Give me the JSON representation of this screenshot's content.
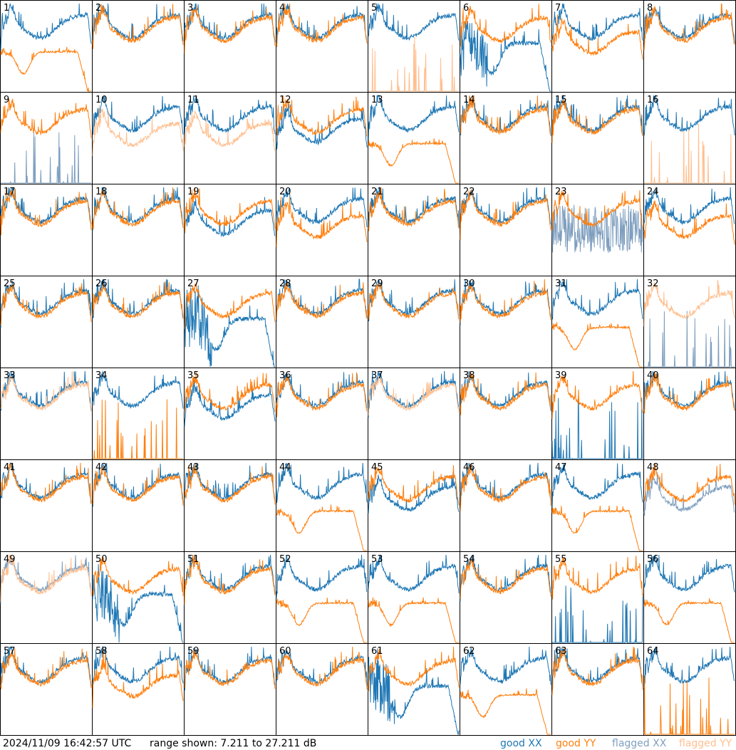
{
  "footer": {
    "timestamp": "2024/11/09 16:42:57 UTC",
    "range_text": "range shown: 7.211 to 27.211 dB"
  },
  "legend": [
    {
      "label": "good XX",
      "color": "#1f77b4"
    },
    {
      "label": "good YY",
      "color": "#ff7f0e"
    },
    {
      "label": "flagged XX",
      "color": "#7f9fbf"
    },
    {
      "label": "flagged YY",
      "color": "#ffbf8f"
    }
  ],
  "chart_data": {
    "type": "line",
    "grid_rows": 8,
    "grid_cols": 8,
    "ylim_db": [
      7.211,
      27.211
    ],
    "panels": [
      {
        "id": "1",
        "xx": "good",
        "yy": "good",
        "shape": "yy_drop"
      },
      {
        "id": "2",
        "xx": "good",
        "yy": "good",
        "shape": "normal"
      },
      {
        "id": "3",
        "xx": "good",
        "yy": "good",
        "shape": "normal"
      },
      {
        "id": "4",
        "xx": "good",
        "yy": "good",
        "shape": "normal"
      },
      {
        "id": "5",
        "xx": "good",
        "yy": "flagged",
        "shape": "yy_dead"
      },
      {
        "id": "6",
        "xx": "good",
        "yy": "good",
        "shape": "xx_weird"
      },
      {
        "id": "7",
        "xx": "good",
        "yy": "good",
        "shape": "yy_low"
      },
      {
        "id": "8",
        "xx": "good",
        "yy": "good",
        "shape": "normal"
      },
      {
        "id": "9",
        "xx": "flagged",
        "yy": "good",
        "shape": "xx_dead"
      },
      {
        "id": "10",
        "xx": "good",
        "yy": "flagged",
        "shape": "yy_low"
      },
      {
        "id": "11",
        "xx": "good",
        "yy": "flagged",
        "shape": "yy_low"
      },
      {
        "id": "12",
        "xx": "good",
        "yy": "good",
        "shape": "xx_low"
      },
      {
        "id": "13",
        "xx": "good",
        "yy": "good",
        "shape": "yy_drop"
      },
      {
        "id": "14",
        "xx": "good",
        "yy": "good",
        "shape": "normal"
      },
      {
        "id": "15",
        "xx": "good",
        "yy": "good",
        "shape": "normal"
      },
      {
        "id": "16",
        "xx": "good",
        "yy": "flagged",
        "shape": "yy_dead"
      },
      {
        "id": "17",
        "xx": "good",
        "yy": "good",
        "shape": "normal"
      },
      {
        "id": "18",
        "xx": "good",
        "yy": "good",
        "shape": "normal"
      },
      {
        "id": "19",
        "xx": "good",
        "yy": "good",
        "shape": "xx_low"
      },
      {
        "id": "20",
        "xx": "good",
        "yy": "good",
        "shape": "yy_low"
      },
      {
        "id": "21",
        "xx": "good",
        "yy": "good",
        "shape": "normal"
      },
      {
        "id": "22",
        "xx": "good",
        "yy": "good",
        "shape": "normal"
      },
      {
        "id": "23",
        "xx": "flagged",
        "yy": "good",
        "shape": "xx_noisy"
      },
      {
        "id": "24",
        "xx": "good",
        "yy": "good",
        "shape": "yy_low"
      },
      {
        "id": "25",
        "xx": "good",
        "yy": "good",
        "shape": "normal"
      },
      {
        "id": "26",
        "xx": "good",
        "yy": "good",
        "shape": "normal"
      },
      {
        "id": "27",
        "xx": "good",
        "yy": "good",
        "shape": "xx_weird"
      },
      {
        "id": "28",
        "xx": "good",
        "yy": "good",
        "shape": "normal"
      },
      {
        "id": "29",
        "xx": "good",
        "yy": "good",
        "shape": "normal"
      },
      {
        "id": "30",
        "xx": "good",
        "yy": "good",
        "shape": "normal"
      },
      {
        "id": "31",
        "xx": "good",
        "yy": "good",
        "shape": "yy_drop"
      },
      {
        "id": "32",
        "xx": "flagged",
        "yy": "flagged",
        "shape": "xx_dead"
      },
      {
        "id": "33",
        "xx": "good",
        "yy": "flagged",
        "shape": "normal"
      },
      {
        "id": "34",
        "xx": "good",
        "yy": "good",
        "shape": "yy_dead"
      },
      {
        "id": "35",
        "xx": "good",
        "yy": "good",
        "shape": "xx_low"
      },
      {
        "id": "36",
        "xx": "good",
        "yy": "good",
        "shape": "normal"
      },
      {
        "id": "37",
        "xx": "good",
        "yy": "flagged",
        "shape": "normal"
      },
      {
        "id": "38",
        "xx": "good",
        "yy": "good",
        "shape": "normal"
      },
      {
        "id": "39",
        "xx": "good",
        "yy": "good",
        "shape": "xx_dead"
      },
      {
        "id": "40",
        "xx": "good",
        "yy": "good",
        "shape": "normal"
      },
      {
        "id": "41",
        "xx": "good",
        "yy": "good",
        "shape": "normal"
      },
      {
        "id": "42",
        "xx": "good",
        "yy": "good",
        "shape": "normal"
      },
      {
        "id": "43",
        "xx": "good",
        "yy": "good",
        "shape": "normal"
      },
      {
        "id": "44",
        "xx": "good",
        "yy": "good",
        "shape": "yy_drop"
      },
      {
        "id": "45",
        "xx": "good",
        "yy": "good",
        "shape": "xx_low"
      },
      {
        "id": "46",
        "xx": "good",
        "yy": "good",
        "shape": "normal"
      },
      {
        "id": "47",
        "xx": "good",
        "yy": "good",
        "shape": "yy_drop"
      },
      {
        "id": "48",
        "xx": "flagged",
        "yy": "good",
        "shape": "xx_low"
      },
      {
        "id": "49",
        "xx": "flagged",
        "yy": "flagged",
        "shape": "normal"
      },
      {
        "id": "50",
        "xx": "good",
        "yy": "good",
        "shape": "xx_weird"
      },
      {
        "id": "51",
        "xx": "good",
        "yy": "good",
        "shape": "normal"
      },
      {
        "id": "52",
        "xx": "good",
        "yy": "good",
        "shape": "yy_drop"
      },
      {
        "id": "53",
        "xx": "good",
        "yy": "good",
        "shape": "yy_drop"
      },
      {
        "id": "54",
        "xx": "good",
        "yy": "good",
        "shape": "normal"
      },
      {
        "id": "55",
        "xx": "good",
        "yy": "good",
        "shape": "xx_dead"
      },
      {
        "id": "56",
        "xx": "good",
        "yy": "good",
        "shape": "yy_drop"
      },
      {
        "id": "57",
        "xx": "good",
        "yy": "good",
        "shape": "normal"
      },
      {
        "id": "58",
        "xx": "good",
        "yy": "good",
        "shape": "yy_low"
      },
      {
        "id": "59",
        "xx": "good",
        "yy": "good",
        "shape": "normal"
      },
      {
        "id": "60",
        "xx": "good",
        "yy": "good",
        "shape": "normal"
      },
      {
        "id": "61",
        "xx": "good",
        "yy": "good",
        "shape": "xx_weird"
      },
      {
        "id": "62",
        "xx": "good",
        "yy": "good",
        "shape": "yy_drop"
      },
      {
        "id": "63",
        "xx": "good",
        "yy": "good",
        "shape": "normal"
      },
      {
        "id": "64",
        "xx": "good",
        "yy": "good",
        "shape": "yy_dead"
      }
    ]
  }
}
